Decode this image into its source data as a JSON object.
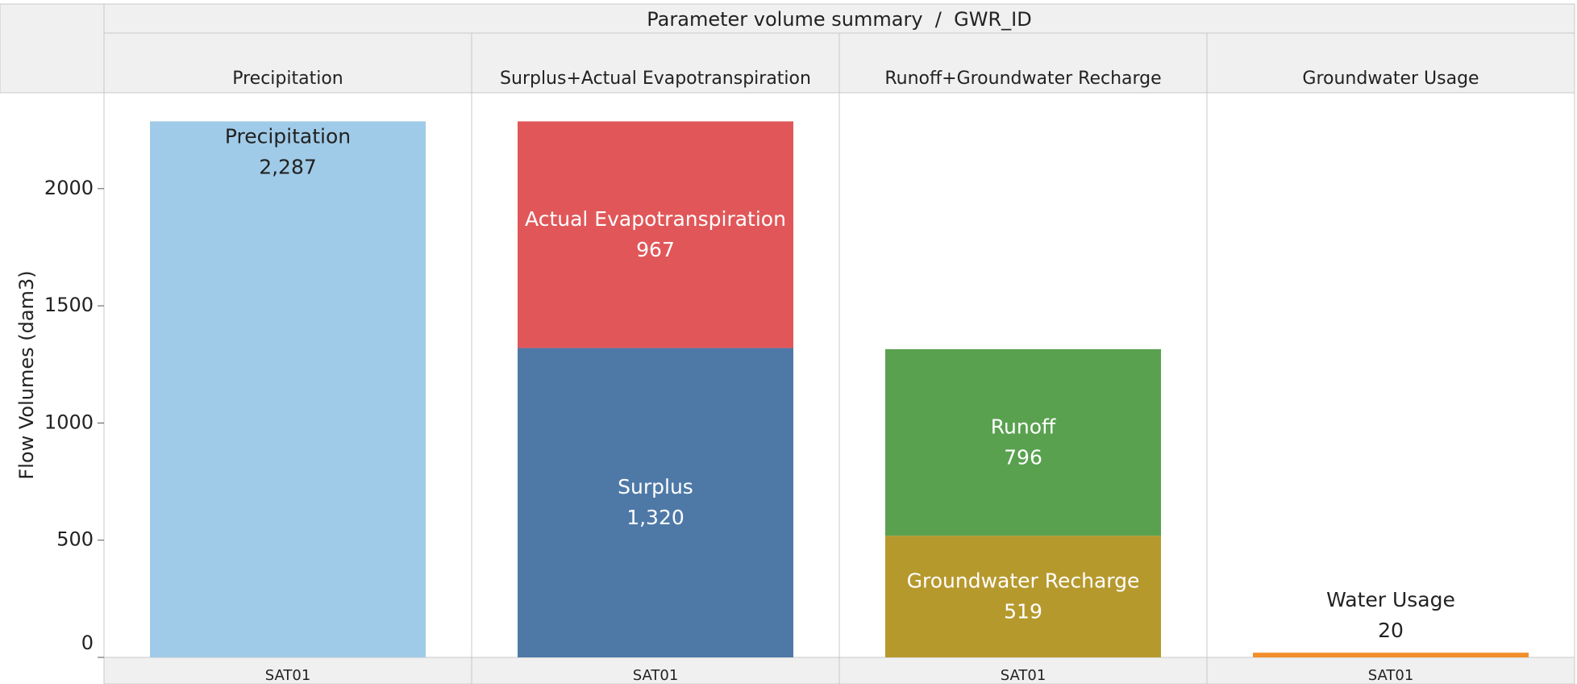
{
  "chart_data": {
    "type": "bar",
    "title": "Parameter volume summary  /  GWR_ID",
    "ylabel": "Flow Volumes (dam3)",
    "ylim": [
      0,
      2409
    ],
    "yticks": [
      0,
      500,
      1000,
      1500,
      2000
    ],
    "grid": false,
    "panels": [
      {
        "name": "Precipitation",
        "category": "SAT01",
        "segments": [
          {
            "name": "Precipitation",
            "color": "#a0cbe8",
            "value": 2287,
            "value_label": "2,287"
          }
        ]
      },
      {
        "name": "Surplus+Actual Evapotranspiration",
        "category": "SAT01",
        "segments": [
          {
            "name": "Surplus",
            "color": "#4e79a7",
            "value": 1320,
            "value_label": "1,320"
          },
          {
            "name": "Actual Evapotranspiration",
            "color": "#e15759",
            "value": 967
          }
        ]
      },
      {
        "name": "Runoff+Groundwater Recharge",
        "category": "SAT01",
        "segments": [
          {
            "name": "Groundwater Recharge",
            "color": "#b6992d",
            "value": 519
          },
          {
            "name": "Runoff",
            "color": "#59a14f",
            "value": 796
          }
        ]
      },
      {
        "name": "Groundwater Usage",
        "category": "SAT01",
        "segments": [
          {
            "name": "Water Usage",
            "color": "#f28e2b",
            "value": 20
          }
        ]
      }
    ]
  }
}
